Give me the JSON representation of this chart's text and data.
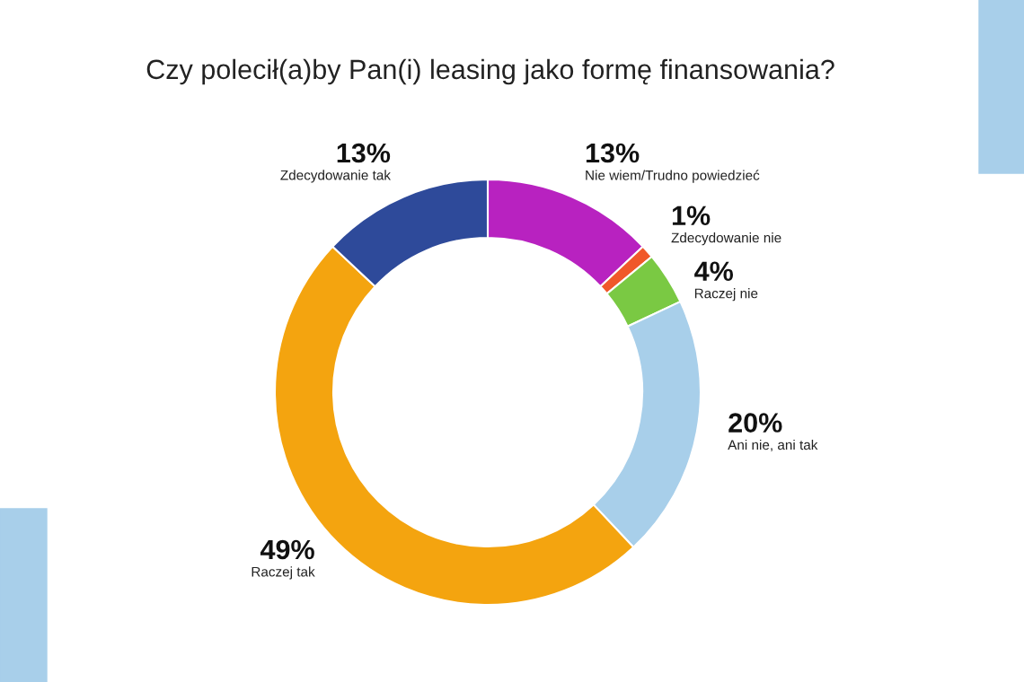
{
  "chart_data": {
    "type": "donut",
    "title": "Czy polecił(a)by Pan(i) leasing jako formę finansowania?",
    "categories": [
      "Nie wiem/Trudno powiedzieć",
      "Zdecydowanie nie",
      "Raczej nie",
      "Ani nie, ani tak",
      "Raczej tak",
      "Zdecydowanie tak"
    ],
    "values": [
      13,
      1,
      4,
      20,
      49,
      13
    ],
    "colors": [
      "#b822c0",
      "#f0582a",
      "#7ac943",
      "#a8cfea",
      "#f4a40f",
      "#2e4a9a"
    ],
    "value_labels": [
      "13%",
      "1%",
      "4%",
      "20%",
      "49%",
      "13%"
    ]
  }
}
